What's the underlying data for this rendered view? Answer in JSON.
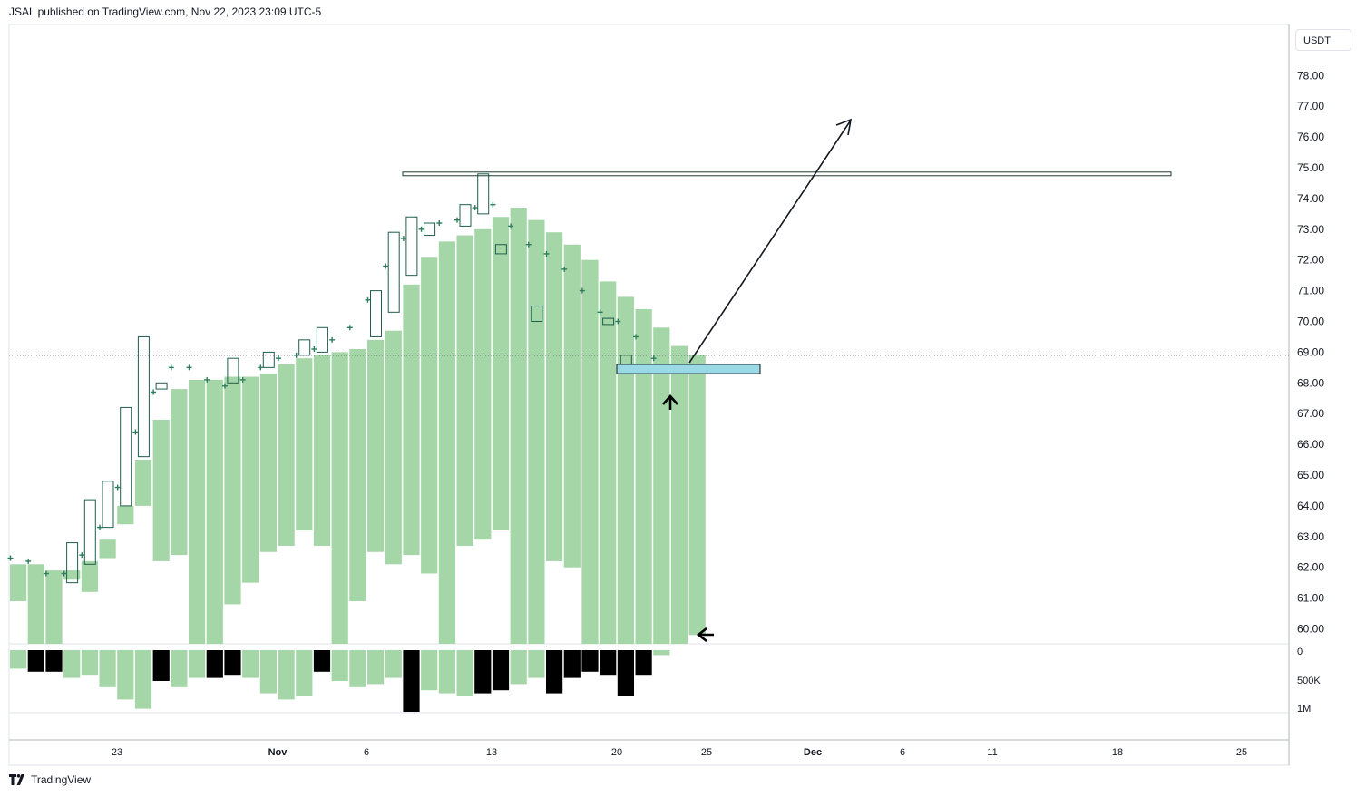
{
  "header": {
    "published": "JSAL published on TradingView.com, Nov 22, 2023 23:09 UTC-5"
  },
  "price_axis": {
    "unit_label": "USDT"
  },
  "footer": {
    "brand": "TradingView"
  },
  "colors": {
    "bar": "#a5d6a7",
    "volume_down": "#000000",
    "hollow_candle": "#1e5e4e",
    "cross": "#2e7d5b",
    "zone": "#9ad9e6"
  },
  "chart_data": {
    "type": "bar",
    "y_ticks": [
      "60.00",
      "61.00",
      "62.00",
      "63.00",
      "64.00",
      "65.00",
      "66.00",
      "67.00",
      "68.00",
      "69.00",
      "70.00",
      "71.00",
      "72.00",
      "73.00",
      "74.00",
      "75.00",
      "76.00",
      "77.00",
      "78.00"
    ],
    "ylim": [
      59.5,
      79.5
    ],
    "x_ticks": [
      "23",
      "Nov",
      "6",
      "13",
      "20",
      "25",
      "Dec",
      "6",
      "11",
      "18",
      "25"
    ],
    "volume_ticks": [
      "0",
      "500K",
      "1M"
    ],
    "ranges": [
      [
        60.9,
        62.1
      ],
      [
        59.5,
        62.1
      ],
      [
        59.5,
        61.9
      ],
      [
        61.6,
        61.9
      ],
      [
        61.2,
        62.2
      ],
      [
        62.3,
        62.9
      ],
      [
        63.4,
        64.0
      ],
      [
        64.0,
        65.5
      ],
      [
        62.2,
        66.8
      ],
      [
        62.4,
        67.8
      ],
      [
        59.5,
        68.1
      ],
      [
        59.5,
        68.1
      ],
      [
        60.8,
        68.2
      ],
      [
        61.5,
        68.2
      ],
      [
        62.5,
        68.3
      ],
      [
        62.7,
        68.6
      ],
      [
        63.2,
        68.8
      ],
      [
        62.7,
        68.9
      ],
      [
        59.5,
        69.0
      ],
      [
        60.9,
        69.1
      ],
      [
        62.5,
        69.4
      ],
      [
        62.1,
        69.7
      ],
      [
        62.4,
        71.2
      ],
      [
        61.8,
        72.1
      ],
      [
        59.5,
        72.6
      ],
      [
        62.7,
        72.8
      ],
      [
        62.9,
        73.0
      ],
      [
        63.2,
        73.4
      ],
      [
        59.5,
        73.7
      ],
      [
        59.5,
        73.3
      ],
      [
        62.2,
        72.9
      ],
      [
        62.0,
        72.5
      ],
      [
        59.5,
        72.0
      ],
      [
        59.5,
        71.3
      ],
      [
        59.5,
        70.8
      ],
      [
        59.5,
        70.4
      ],
      [
        59.5,
        69.8
      ],
      [
        59.5,
        69.2
      ],
      [
        59.8,
        68.9
      ]
    ],
    "volume": [
      [
        300,
        false
      ],
      [
        350,
        true
      ],
      [
        350,
        true
      ],
      [
        450,
        false
      ],
      [
        400,
        false
      ],
      [
        600,
        false
      ],
      [
        800,
        false
      ],
      [
        950,
        false
      ],
      [
        500,
        true
      ],
      [
        600,
        false
      ],
      [
        450,
        false
      ],
      [
        450,
        true
      ],
      [
        400,
        true
      ],
      [
        450,
        false
      ],
      [
        700,
        false
      ],
      [
        800,
        false
      ],
      [
        750,
        false
      ],
      [
        350,
        true
      ],
      [
        500,
        false
      ],
      [
        600,
        false
      ],
      [
        550,
        false
      ],
      [
        450,
        false
      ],
      [
        1000,
        true
      ],
      [
        650,
        false
      ],
      [
        700,
        false
      ],
      [
        750,
        false
      ],
      [
        700,
        true
      ],
      [
        650,
        true
      ],
      [
        550,
        false
      ],
      [
        450,
        false
      ],
      [
        700,
        true
      ],
      [
        450,
        true
      ],
      [
        350,
        true
      ],
      [
        400,
        true
      ],
      [
        750,
        true
      ],
      [
        400,
        true
      ],
      [
        80,
        false
      ]
    ],
    "candles": [
      [
        61.5,
        62.8
      ],
      [
        62.1,
        64.2
      ],
      [
        63.3,
        64.8
      ],
      [
        64.0,
        67.2
      ],
      [
        65.6,
        69.5
      ],
      [
        67.8,
        68.0
      ],
      [
        68.0,
        68.8
      ],
      [
        68.5,
        69.0
      ],
      [
        68.9,
        69.4
      ],
      [
        69.0,
        69.8
      ],
      [
        69.5,
        71.0
      ],
      [
        70.3,
        72.9
      ],
      [
        71.5,
        73.4
      ],
      [
        72.8,
        73.2
      ],
      [
        73.1,
        73.8
      ],
      [
        73.5,
        74.8
      ],
      [
        72.2,
        72.5
      ],
      [
        70.0,
        70.5
      ],
      [
        69.9,
        70.1
      ],
      [
        68.3,
        68.9
      ]
    ],
    "crosses": [
      62.3,
      62.2,
      61.8,
      61.8,
      62.4,
      63.3,
      64.6,
      66.4,
      67.7,
      68.5,
      68.5,
      68.1,
      67.9,
      68.1,
      68.5,
      68.8,
      68.9,
      69.1,
      69.4,
      69.8,
      70.7,
      71.8,
      72.7,
      73.0,
      73.2,
      73.3,
      73.7,
      73.8,
      73.1,
      72.5,
      72.2,
      71.7,
      71.0,
      70.3,
      70.0,
      69.5,
      68.8,
      68.5
    ],
    "annotations": {
      "resistance_line": 74.8,
      "current_price": 68.9,
      "zone": [
        68.3,
        68.6
      ]
    }
  }
}
